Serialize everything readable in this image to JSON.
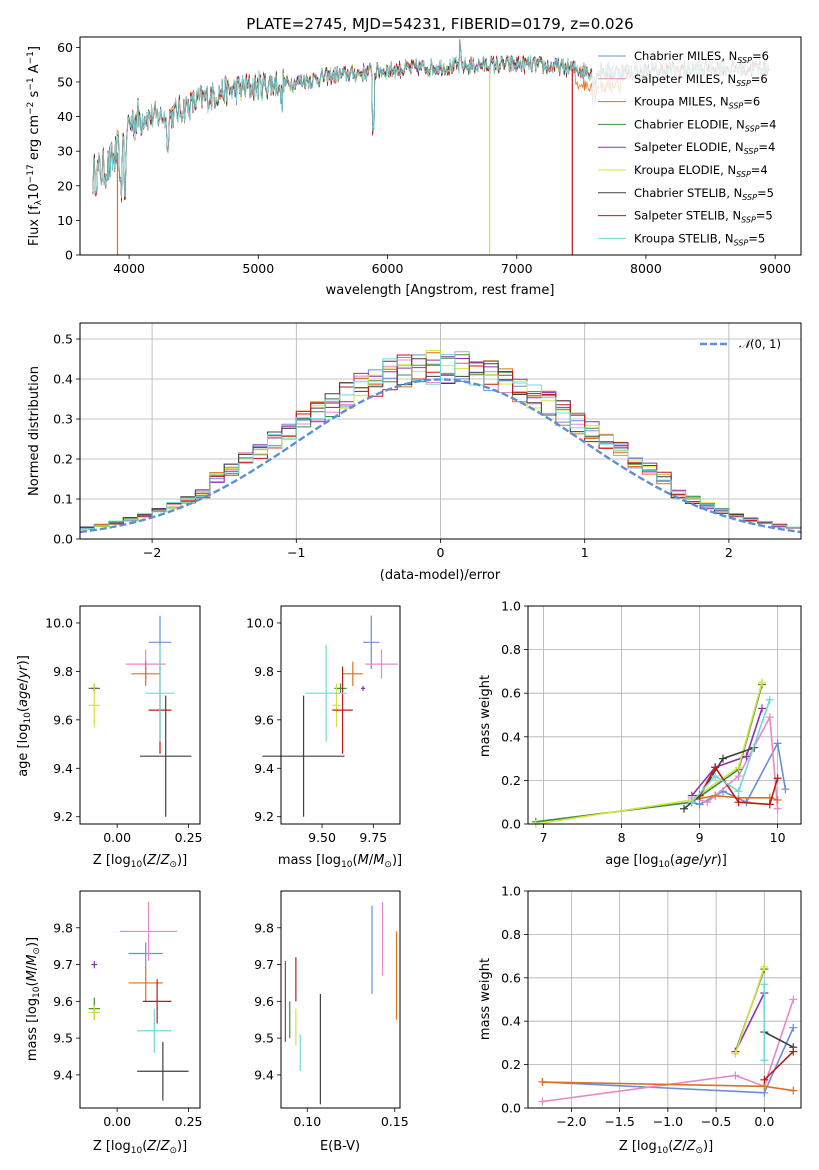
{
  "colors": {
    "series": [
      "#6a8fd8",
      "#e888c8",
      "#e07020",
      "#3a9040",
      "#9030b0",
      "#d8e040",
      "#404040",
      "#c01818",
      "#70d8d8"
    ],
    "normal_curve": "#5b8fd8",
    "grid": "#b0b0b0"
  },
  "chart_data": [
    {
      "type": "line",
      "title": "PLATE=2745, MJD=54231, FIBERID=0179, z=0.026",
      "xlabel": "wavelength [Angstrom, rest frame]",
      "ylabel": "Flux [f_λ10^−17 erg cm^−2 s^−1 A^−1]",
      "xlim": [
        3620,
        9200
      ],
      "ylim": [
        0,
        63
      ],
      "xticks": [
        4000,
        5000,
        6000,
        7000,
        8000,
        9000
      ],
      "yticks": [
        0,
        10,
        20,
        30,
        40,
        50,
        60
      ],
      "legend_position": "upper-right",
      "series": [
        {
          "name": "Chabrier MILES, N_SSP=6"
        },
        {
          "name": "Salpeter MILES, N_SSP=6"
        },
        {
          "name": "Kroupa MILES, N_SSP=6"
        },
        {
          "name": "Chabrier ELODIE, N_SSP=4"
        },
        {
          "name": "Salpeter ELODIE, N_SSP=4"
        },
        {
          "name": "Kroupa ELODIE, N_SSP=4"
        },
        {
          "name": "Chabrier STELIB, N_SSP=5"
        },
        {
          "name": "Salpeter STELIB, N_SSP=5"
        },
        {
          "name": "Kroupa STELIB, N_SSP=5"
        }
      ],
      "continuum": {
        "x": [
          3720,
          3850,
          3950,
          4000,
          4100,
          4300,
          4500,
          4700,
          5000,
          5300,
          5600,
          5900,
          6200,
          6500,
          6800,
          7100,
          7400,
          7600,
          8000,
          8500,
          8950
        ],
        "y": [
          23,
          26,
          32,
          38,
          40,
          40,
          44,
          47,
          49,
          50,
          52,
          53,
          54,
          54.5,
          55,
          55,
          54,
          53,
          53,
          54,
          54
        ]
      },
      "drops": [
        {
          "series": "Kroupa MILES, N_SSP=6",
          "x": 3910,
          "to": 0
        },
        {
          "series": "Kroupa ELODIE, N_SSP=4",
          "x": 6790,
          "to": 0
        },
        {
          "series": "Salpeter STELIB, N_SSP=5",
          "x": 7430,
          "to": 0
        }
      ]
    },
    {
      "type": "bar",
      "xlabel": "(data-model)/error",
      "ylabel": "Normed distribution",
      "xlim": [
        -2.5,
        2.5
      ],
      "ylim": [
        0,
        0.54
      ],
      "xticks": [
        -2,
        -1,
        0,
        1,
        2
      ],
      "yticks": [
        0.0,
        0.1,
        0.2,
        0.3,
        0.4,
        0.5
      ],
      "grid": true,
      "legend_position": "upper-right",
      "legend": [
        "𝒩(0, 1)"
      ],
      "bin_width": 0.1,
      "normal": {
        "mean": 0,
        "sigma": 1
      }
    },
    {
      "type": "scatter",
      "xlabel": "Z [log10(Z/Z⊙)]",
      "ylabel": "age [log10(age/yr)]",
      "xlim": [
        -0.13,
        0.29
      ],
      "ylim": [
        9.17,
        10.07
      ],
      "xticks": [
        0.0,
        0.25
      ],
      "xtick_labels": [
        "0.00",
        "0.25"
      ],
      "yticks": [
        9.2,
        9.4,
        9.6,
        9.8,
        10.0
      ],
      "ytick_labels": [
        "9.2",
        "9.4",
        "9.6",
        "9.8",
        "10.0"
      ],
      "points": [
        {
          "series": 0,
          "x": 0.15,
          "xerr": 0.04,
          "y": 9.92,
          "yerr": 0.11
        },
        {
          "series": 1,
          "x": 0.1,
          "xerr": 0.07,
          "y": 9.83,
          "yerr": 0.06
        },
        {
          "series": 2,
          "x": 0.1,
          "xerr": 0.05,
          "y": 9.79,
          "yerr": 0.05
        },
        {
          "series": 3,
          "x": -0.08,
          "xerr": 0.02,
          "y": 9.73,
          "yerr": 0.02
        },
        {
          "series": 4,
          "x": -0.08,
          "xerr": 0.01,
          "y": 9.73,
          "yerr": 0.01
        },
        {
          "series": 5,
          "x": -0.08,
          "xerr": 0.02,
          "y": 9.66,
          "yerr": 0.09
        },
        {
          "series": 6,
          "x": 0.17,
          "xerr": 0.09,
          "y": 9.45,
          "yerr": 0.25
        },
        {
          "series": 7,
          "x": 0.15,
          "xerr": 0.04,
          "y": 9.64,
          "yerr": 0.18
        },
        {
          "series": 8,
          "x": 0.15,
          "xerr": 0.05,
          "y": 9.71,
          "yerr": 0.2
        }
      ]
    },
    {
      "type": "scatter",
      "xlabel": "mass [log10(M/M⊙)]",
      "ylabel": "",
      "xlim": [
        9.3,
        9.88
      ],
      "ylim": [
        9.17,
        10.07
      ],
      "xticks": [
        9.5,
        9.75
      ],
      "xtick_labels": [
        "9.50",
        "9.75"
      ],
      "yticks": [
        9.2,
        9.4,
        9.6,
        9.8,
        10.0
      ],
      "ytick_labels": [
        "9.2",
        "9.4",
        "9.6",
        "9.8",
        "10.0"
      ],
      "points": [
        {
          "series": 0,
          "x": 9.74,
          "xerr": 0.04,
          "y": 9.92,
          "yerr": 0.11
        },
        {
          "series": 1,
          "x": 9.79,
          "xerr": 0.08,
          "y": 9.83,
          "yerr": 0.06
        },
        {
          "series": 2,
          "x": 9.65,
          "xerr": 0.05,
          "y": 9.79,
          "yerr": 0.05
        },
        {
          "series": 3,
          "x": 9.59,
          "xerr": 0.03,
          "y": 9.73,
          "yerr": 0.02
        },
        {
          "series": 4,
          "x": 9.7,
          "xerr": 0.01,
          "y": 9.73,
          "yerr": 0.01
        },
        {
          "series": 5,
          "x": 9.57,
          "xerr": 0.02,
          "y": 9.66,
          "yerr": 0.09
        },
        {
          "series": 6,
          "x": 9.41,
          "xerr": 0.2,
          "y": 9.45,
          "yerr": 0.25
        },
        {
          "series": 7,
          "x": 9.6,
          "xerr": 0.05,
          "y": 9.64,
          "yerr": 0.18
        },
        {
          "series": 8,
          "x": 9.52,
          "xerr": 0.1,
          "y": 9.71,
          "yerr": 0.2
        }
      ]
    },
    {
      "type": "line",
      "xlabel": "age [log10(age/yr)]",
      "ylabel": "mass weight",
      "xlim": [
        6.8,
        10.3
      ],
      "ylim": [
        0,
        1
      ],
      "xticks": [
        7,
        8,
        9,
        10
      ],
      "yticks": [
        0.0,
        0.2,
        0.4,
        0.6,
        0.8,
        1.0
      ],
      "ytick_labels": [
        "0.0",
        "0.2",
        "0.4",
        "0.6",
        "0.8",
        "1.0"
      ],
      "grid": true,
      "series": [
        {
          "series": 0,
          "x": [
            8.9,
            9.0,
            9.3,
            9.6,
            10.0,
            10.1
          ],
          "y": [
            0.1,
            0.09,
            0.15,
            0.1,
            0.37,
            0.16
          ]
        },
        {
          "series": 1,
          "x": [
            8.9,
            9.1,
            9.5,
            9.9,
            10.0
          ],
          "y": [
            0.12,
            0.1,
            0.22,
            0.49,
            0.07
          ]
        },
        {
          "series": 2,
          "x": [
            8.9,
            9.2,
            9.5,
            9.9,
            10.0
          ],
          "y": [
            0.11,
            0.13,
            0.12,
            0.12,
            0.11
          ]
        },
        {
          "series": 3,
          "x": [
            6.9,
            8.9,
            9.5,
            9.8
          ],
          "y": [
            0.01,
            0.1,
            0.25,
            0.64
          ]
        },
        {
          "series": 4,
          "x": [
            8.9,
            9.2,
            9.6,
            9.8
          ],
          "y": [
            0.13,
            0.26,
            0.31,
            0.53
          ]
        },
        {
          "series": 5,
          "x": [
            6.9,
            8.9,
            9.5,
            9.8
          ],
          "y": [
            0.0,
            0.11,
            0.26,
            0.65
          ]
        },
        {
          "series": 6,
          "x": [
            8.8,
            9.0,
            9.3,
            9.7
          ],
          "y": [
            0.07,
            0.13,
            0.3,
            0.35
          ]
        },
        {
          "series": 7,
          "x": [
            9.0,
            9.2,
            9.5,
            9.9,
            10.0
          ],
          "y": [
            0.13,
            0.26,
            0.1,
            0.09,
            0.21
          ]
        },
        {
          "series": 8,
          "x": [
            8.9,
            9.2,
            9.5,
            9.9
          ],
          "y": [
            0.1,
            0.22,
            0.15,
            0.57
          ]
        }
      ]
    },
    {
      "type": "scatter",
      "xlabel": "Z [log10(Z/Z⊙)]",
      "ylabel": "mass [log10(M/M⊙)]",
      "xlim": [
        -0.13,
        0.29
      ],
      "ylim": [
        9.31,
        9.9
      ],
      "xticks": [
        0.0,
        0.25
      ],
      "xtick_labels": [
        "0.00",
        "0.25"
      ],
      "yticks": [
        9.4,
        9.5,
        9.6,
        9.7,
        9.8
      ],
      "ytick_labels": [
        "9.4",
        "9.5",
        "9.6",
        "9.7",
        "9.8"
      ],
      "points": [
        {
          "series": 0,
          "x": 0.1,
          "xerr": 0.06,
          "y": 9.73,
          "yerr": 0.03
        },
        {
          "series": 1,
          "x": 0.11,
          "xerr": 0.1,
          "y": 9.79,
          "yerr": 0.08
        },
        {
          "series": 2,
          "x": 0.1,
          "xerr": 0.06,
          "y": 9.65,
          "yerr": 0.05
        },
        {
          "series": 3,
          "x": -0.08,
          "xerr": 0.02,
          "y": 9.58,
          "yerr": 0.03
        },
        {
          "series": 4,
          "x": -0.08,
          "xerr": 0.01,
          "y": 9.7,
          "yerr": 0.01
        },
        {
          "series": 5,
          "x": -0.08,
          "xerr": 0.02,
          "y": 9.57,
          "yerr": 0.02
        },
        {
          "series": 6,
          "x": 0.16,
          "xerr": 0.09,
          "y": 9.41,
          "yerr": 0.08
        },
        {
          "series": 7,
          "x": 0.14,
          "xerr": 0.05,
          "y": 9.6,
          "yerr": 0.06
        },
        {
          "series": 8,
          "x": 0.13,
          "xerr": 0.06,
          "y": 9.52,
          "yerr": 0.06
        }
      ]
    },
    {
      "type": "scatter",
      "xlabel": "E(B-V)",
      "ylabel": "",
      "xlim": [
        0.085,
        0.153
      ],
      "ylim": [
        9.31,
        9.9
      ],
      "xticks": [
        0.1,
        0.15
      ],
      "xtick_labels": [
        "0.10",
        "0.15"
      ],
      "yticks": [
        9.4,
        9.5,
        9.6,
        9.7,
        9.8
      ],
      "ytick_labels": [
        "9.4",
        "9.5",
        "9.6",
        "9.7",
        "9.8"
      ],
      "points": [
        {
          "series": 0,
          "x": 0.137,
          "y": 9.74,
          "yerr": 0.12
        },
        {
          "series": 1,
          "x": 0.143,
          "y": 9.77,
          "yerr": 0.1
        },
        {
          "series": 2,
          "x": 0.151,
          "y": 9.67,
          "yerr": 0.12
        },
        {
          "series": 3,
          "x": 0.09,
          "y": 9.55,
          "yerr": 0.05
        },
        {
          "series": 4,
          "x": 0.0875,
          "y": 9.6,
          "yerr": 0.11
        },
        {
          "series": 5,
          "x": 0.0935,
          "y": 9.53,
          "yerr": 0.05
        },
        {
          "series": 6,
          "x": 0.1075,
          "y": 9.47,
          "yerr": 0.15
        },
        {
          "series": 7,
          "x": 0.0935,
          "y": 9.66,
          "yerr": 0.06
        },
        {
          "series": 8,
          "x": 0.096,
          "y": 9.46,
          "yerr": 0.05
        }
      ]
    },
    {
      "type": "line",
      "xlabel": "Z [log10(Z/Z⊙)]",
      "ylabel": "mass weight",
      "xlim": [
        -2.45,
        0.38
      ],
      "ylim": [
        0,
        1
      ],
      "xticks": [
        -2.0,
        -1.5,
        -1.0,
        -0.5,
        0.0
      ],
      "xtick_labels": [
        "−2.0",
        "−1.5",
        "−1.0",
        "−0.5",
        "0.0"
      ],
      "yticks": [
        0.0,
        0.2,
        0.4,
        0.6,
        0.8,
        1.0
      ],
      "ytick_labels": [
        "0.0",
        "0.2",
        "0.4",
        "0.6",
        "0.8",
        "1.0"
      ],
      "grid": true,
      "series": [
        {
          "series": 0,
          "x": [
            -2.3,
            0.0,
            0.3
          ],
          "y": [
            0.12,
            0.07,
            0.37
          ]
        },
        {
          "series": 1,
          "x": [
            -2.3,
            -0.3,
            0.0,
            0.3
          ],
          "y": [
            0.03,
            0.15,
            0.1,
            0.5
          ]
        },
        {
          "series": 2,
          "x": [
            -2.3,
            0.0,
            0.3
          ],
          "y": [
            0.12,
            0.1,
            0.08
          ]
        },
        {
          "series": 3,
          "x": [
            -0.3,
            0.0
          ],
          "y": [
            0.26,
            0.64
          ]
        },
        {
          "series": 4,
          "x": [
            -0.3,
            0.0
          ],
          "y": [
            0.26,
            0.53
          ]
        },
        {
          "series": 5,
          "x": [
            -0.3,
            0.0
          ],
          "y": [
            0.25,
            0.65
          ]
        },
        {
          "series": 6,
          "x": [
            0.0,
            0.3
          ],
          "y": [
            0.35,
            0.28
          ]
        },
        {
          "series": 7,
          "x": [
            0.0,
            0.3
          ],
          "y": [
            0.13,
            0.26
          ]
        },
        {
          "series": 8,
          "x": [
            0.0,
            0.0
          ],
          "y": [
            0.57,
            0.22
          ]
        }
      ]
    }
  ]
}
